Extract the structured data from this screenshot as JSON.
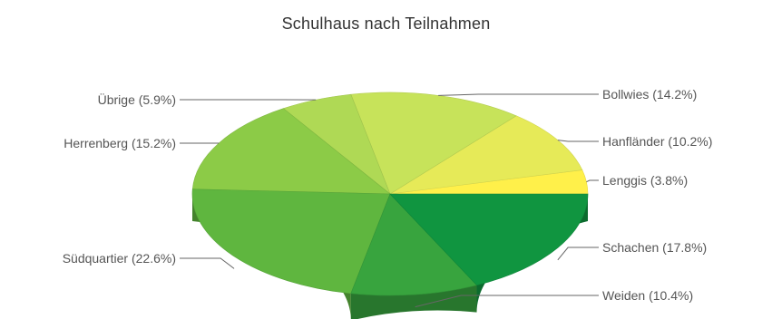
{
  "chart_data": {
    "type": "pie",
    "title": "Schulhaus nach Teilnahmen",
    "legend": "none",
    "slices": [
      {
        "label": "Lenggis (3.8%)",
        "value": 3.8,
        "color": "#fff04a"
      },
      {
        "label": "Hanfländer (10.2%)",
        "value": 10.2,
        "color": "#e6ea58"
      },
      {
        "label": "Bollwies (14.2%)",
        "value": 14.2,
        "color": "#c7e35a"
      },
      {
        "label": "Übrige (5.9%)",
        "value": 5.9,
        "color": "#afd955"
      },
      {
        "label": "Herrenberg (15.2%)",
        "value": 15.2,
        "color": "#8ccb47"
      },
      {
        "label": "Südquartier (22.6%)",
        "value": 22.6,
        "color": "#5fb63f"
      },
      {
        "label": "Weiden (10.4%)",
        "value": 10.4,
        "color": "#38a43e"
      },
      {
        "label": "Schachen (17.8%)",
        "value": 17.8,
        "color": "#109540"
      }
    ]
  }
}
